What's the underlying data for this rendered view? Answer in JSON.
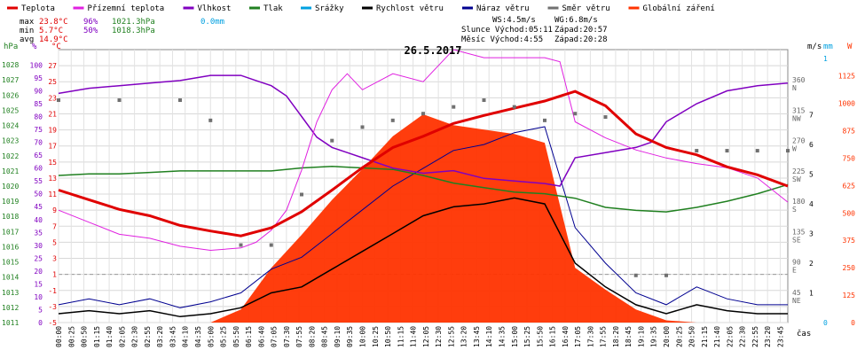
{
  "colors": {
    "teplota": "#e00000",
    "prizemni_teplota": "#e020e0",
    "vlhkost": "#8000c0",
    "tlak": "#208020",
    "srazky": "#00a0e0",
    "rychlost_vetru": "#000000",
    "naraz_vetru": "#000090",
    "smer_vetru": "#707070",
    "globalni_zareni": "#ff3300"
  },
  "legend": [
    {
      "key": "teplota",
      "label": "Teplota"
    },
    {
      "key": "prizemni_teplota",
      "label": "Přízemní teplota"
    },
    {
      "key": "vlhkost",
      "label": "Vlhkost"
    },
    {
      "key": "tlak",
      "label": "Tlak"
    },
    {
      "key": "srazky",
      "label": "Srážky"
    },
    {
      "key": "rychlost_vetru",
      "label": "Rychlost větru"
    },
    {
      "key": "naraz_vetru",
      "label": "Náraz větru"
    },
    {
      "key": "smer_vetru",
      "label": "Směr větru"
    },
    {
      "key": "globalni_zareni",
      "label": "Globální záření"
    }
  ],
  "stats": {
    "max": {
      "label": "max",
      "temp": "23.8°C",
      "hum": "96%",
      "press": "1021.3hPa",
      "rain": "0.0mm"
    },
    "min": {
      "label": "min",
      "temp": "5.7°C",
      "hum": "50%",
      "press": "1018.3hPa"
    },
    "avg": {
      "label": "avg",
      "temp": "14.9°C"
    }
  },
  "info": {
    "ws": "WS:4.5m/s",
    "wg": "WG:6.8m/s",
    "slunce": "Slunce Východ:05:11",
    "slunce_zapad": "Západ:20:57",
    "mesic": "Měsíc  Východ:4:55",
    "mesic_zapad": "Západ:20:28"
  },
  "chart_data": {
    "type": "line",
    "title": "26.5.2017",
    "xlabel": "čas",
    "x_ticks": [
      "00:00",
      "00:25",
      "00:50",
      "01:15",
      "01:40",
      "02:05",
      "02:30",
      "02:55",
      "03:20",
      "03:45",
      "04:10",
      "04:35",
      "05:00",
      "05:25",
      "05:50",
      "06:15",
      "06:40",
      "07:05",
      "07:30",
      "07:55",
      "08:20",
      "08:45",
      "09:10",
      "09:35",
      "10:00",
      "10:25",
      "10:50",
      "11:15",
      "11:40",
      "12:05",
      "12:30",
      "12:55",
      "13:20",
      "13:45",
      "14:10",
      "14:35",
      "15:00",
      "15:25",
      "15:50",
      "16:15",
      "16:40",
      "17:05",
      "17:30",
      "17:55",
      "18:20",
      "18:45",
      "19:10",
      "19:35",
      "20:00",
      "20:25",
      "20:50",
      "21:15",
      "21:40",
      "22:05",
      "22:30",
      "22:55",
      "23:20",
      "23:45"
    ],
    "axes": {
      "hPa": {
        "label": "hPa",
        "range": [
          1011,
          1029
        ],
        "ticks": [
          "1011",
          "1012",
          "1013",
          "1014",
          "1015",
          "1016",
          "1017",
          "1018",
          "1019",
          "1020",
          "1021",
          "1022",
          "1023",
          "1024",
          "1025",
          "1026",
          "1027",
          "1028"
        ]
      },
      "percent": {
        "label": "%",
        "range": [
          0,
          100
        ],
        "ticks": [
          "0",
          "5",
          "10",
          "15",
          "20",
          "25",
          "30",
          "35",
          "40",
          "45",
          "50",
          "55",
          "60",
          "65",
          "70",
          "75",
          "80",
          "85",
          "90",
          "95",
          "100"
        ]
      },
      "celsius": {
        "label": "°C",
        "range": [
          -5,
          27
        ],
        "ticks": [
          "-5",
          "-3",
          "-1",
          "1",
          "3",
          "5",
          "7",
          "9",
          "11",
          "13",
          "15",
          "17",
          "19",
          "21",
          "23",
          "25",
          "27"
        ]
      },
      "wind_speed": {
        "label": "m/s",
        "ticks": [
          "1",
          "2",
          "3",
          "4",
          "5",
          "6",
          "7"
        ]
      },
      "rain": {
        "label": "mm",
        "ticks": [
          "0",
          "1"
        ]
      },
      "radiation": {
        "label": "W",
        "ticks": [
          "0",
          "125",
          "250",
          "375",
          "500",
          "625",
          "750",
          "875",
          "1000",
          "1125"
        ]
      },
      "direction": {
        "ticks": [
          {
            "deg": "360",
            "dir": "N"
          },
          {
            "deg": "315",
            "dir": "NW"
          },
          {
            "deg": "270",
            "dir": "W"
          },
          {
            "deg": "225",
            "dir": "SW"
          },
          {
            "deg": "180",
            "dir": "S"
          },
          {
            "deg": "135",
            "dir": "SE"
          },
          {
            "deg": "90",
            "dir": "E"
          },
          {
            "deg": "45",
            "dir": "NE"
          }
        ]
      }
    },
    "series": [
      {
        "key": "teplota",
        "name": "Teplota",
        "unit": "°C",
        "x": [
          0,
          1,
          2,
          3,
          4,
          5,
          6,
          7,
          8,
          9,
          10,
          11,
          12,
          13,
          14,
          15,
          16,
          17,
          18,
          19,
          20,
          21,
          22,
          23,
          24
        ],
        "y": [
          11.5,
          10.3,
          9.1,
          8.3,
          7.1,
          6.4,
          5.8,
          6.8,
          8.8,
          11.5,
          14.3,
          16.8,
          18.2,
          19.8,
          20.8,
          21.7,
          22.6,
          23.8,
          22.0,
          18.5,
          16.8,
          15.9,
          14.4,
          13.4,
          12.0
        ]
      },
      {
        "key": "prizemni_teplota",
        "name": "Přízemní teplota",
        "unit": "°C",
        "x": [
          0,
          1,
          2,
          3,
          4,
          5,
          6,
          6.5,
          7,
          7.5,
          8,
          8.5,
          9,
          9.5,
          10,
          11,
          12,
          13,
          14,
          15,
          16,
          16.5,
          17,
          18,
          19,
          20,
          21,
          22,
          23,
          24
        ],
        "y": [
          9.0,
          7.5,
          6.0,
          5.5,
          4.5,
          4.0,
          4.3,
          5.0,
          6.5,
          9.0,
          14.0,
          20.0,
          24.0,
          26.0,
          24.0,
          26.0,
          25.0,
          29.0,
          28.0,
          28.0,
          28.0,
          27.5,
          20.0,
          18.0,
          16.5,
          15.5,
          14.8,
          14.3,
          13.0,
          10.0
        ]
      },
      {
        "key": "vlhkost",
        "name": "Vlhkost",
        "unit": "%",
        "x": [
          0,
          1,
          2,
          3,
          4,
          5,
          6,
          6.5,
          7,
          7.5,
          8,
          8.5,
          9,
          9.5,
          10,
          11,
          12,
          13,
          14,
          15,
          16,
          16.5,
          17,
          18,
          19,
          19.5,
          20,
          21,
          22,
          23,
          24
        ],
        "y": [
          89,
          91,
          92,
          93,
          94,
          96,
          96,
          94,
          92,
          88,
          80,
          72,
          68,
          66,
          64,
          60,
          58,
          59,
          56,
          55,
          54,
          53,
          64,
          66,
          68,
          70,
          78,
          85,
          90,
          92,
          93
        ]
      },
      {
        "key": "tlak",
        "name": "Tlak",
        "unit": "hPa",
        "x": [
          0,
          1,
          2,
          3,
          4,
          5,
          6,
          7,
          8,
          9,
          10,
          11,
          12,
          13,
          14,
          15,
          16,
          17,
          18,
          19,
          20,
          21,
          22,
          23,
          24
        ],
        "y": [
          1020.7,
          1020.8,
          1020.8,
          1020.9,
          1021.0,
          1021.0,
          1021.0,
          1021.0,
          1021.2,
          1021.3,
          1021.2,
          1021.1,
          1020.7,
          1020.2,
          1019.9,
          1019.6,
          1019.5,
          1019.2,
          1018.6,
          1018.4,
          1018.3,
          1018.6,
          1019.0,
          1019.5,
          1020.1
        ]
      },
      {
        "key": "smer_vetru",
        "name": "Směr větru",
        "unit": "°",
        "x": [
          0,
          2,
          4,
          5,
          6,
          7,
          8,
          9,
          10,
          11,
          12,
          13,
          14,
          15,
          16,
          17,
          18,
          19,
          20,
          21,
          22,
          23,
          24
        ],
        "y": [
          330,
          330,
          330,
          300,
          115,
          115,
          190,
          270,
          290,
          300,
          310,
          320,
          330,
          320,
          300,
          310,
          305,
          70,
          70,
          255,
          255,
          255,
          255
        ]
      },
      {
        "key": "rychlost_vetru",
        "name": "Rychlost větru",
        "unit": "m/s",
        "x": [
          0,
          1,
          2,
          3,
          4,
          5,
          6,
          7,
          8,
          9,
          10,
          11,
          12,
          13,
          14,
          15,
          16,
          17,
          18,
          19,
          20,
          21,
          22,
          23,
          24
        ],
        "y": [
          0.3,
          0.4,
          0.3,
          0.4,
          0.2,
          0.3,
          0.5,
          1.0,
          1.2,
          1.8,
          2.4,
          3.0,
          3.6,
          3.9,
          4.0,
          4.2,
          4.0,
          2.0,
          1.2,
          0.6,
          0.3,
          0.6,
          0.4,
          0.3,
          0.3
        ]
      },
      {
        "key": "naraz_vetru",
        "name": "Náraz větru",
        "unit": "m/s",
        "x": [
          0,
          1,
          2,
          3,
          4,
          5,
          6,
          7,
          8,
          9,
          10,
          11,
          12,
          13,
          14,
          15,
          16,
          17,
          18,
          19,
          20,
          21,
          22,
          23,
          24
        ],
        "y": [
          0.6,
          0.8,
          0.6,
          0.8,
          0.5,
          0.7,
          1.0,
          1.8,
          2.2,
          3.0,
          3.8,
          4.6,
          5.2,
          5.8,
          6.0,
          6.4,
          6.6,
          3.2,
          2.0,
          1.0,
          0.6,
          1.2,
          0.8,
          0.6,
          0.6
        ]
      },
      {
        "key": "globalni_zareni",
        "name": "Globální záření",
        "unit": "W",
        "x": [
          5,
          6,
          7,
          8,
          9,
          10,
          11,
          12,
          13,
          14,
          15,
          16,
          17,
          18,
          19,
          20,
          21
        ],
        "y": [
          0,
          60,
          250,
          400,
          560,
          700,
          850,
          950,
          900,
          880,
          860,
          820,
          250,
          150,
          60,
          10,
          0
        ]
      }
    ]
  }
}
